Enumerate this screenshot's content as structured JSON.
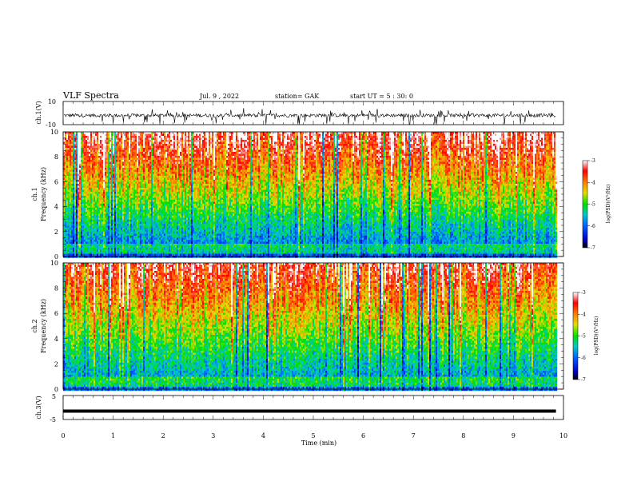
{
  "header": {
    "title": "VLF Spectra",
    "date": "Jul. 9 , 2022",
    "station": "station= GAK",
    "start": "start UT = 5 : 30: 0"
  },
  "chart_data": [
    {
      "type": "line",
      "ylabel": "ch.1(V)",
      "xlim": [
        0,
        10
      ],
      "ylim": [
        -10,
        10
      ],
      "y_tick_labels": [
        "10",
        "-10"
      ],
      "description_values": "noisy waveform mostly between -8 and 2 V, offset near -2 V"
    },
    {
      "type": "heatmap",
      "ylabel_line1": "ch.1",
      "ylabel_line2": "Frequency (kHz)",
      "xlim": [
        0,
        9.85
      ],
      "ylim": [
        0,
        10
      ],
      "y_tick_labels": [
        "0",
        "2",
        "4",
        "6",
        "8",
        "10"
      ],
      "colorbar": {
        "label": "log(PSD)(V²/Hz)",
        "range": [
          -7,
          -3
        ],
        "tick_labels": [
          "-3",
          "-4",
          "-5",
          "-6",
          "-7"
        ]
      }
    },
    {
      "type": "heatmap",
      "ylabel_line1": "ch.2",
      "ylabel_line2": "Frequency (kHz)",
      "xlim": [
        0,
        9.85
      ],
      "ylim": [
        0,
        10
      ],
      "y_tick_labels": [
        "0",
        "2",
        "4",
        "6",
        "8",
        "10"
      ],
      "colorbar": {
        "label": "log(PSD)(V²/Hz)",
        "range": [
          -7,
          -3
        ],
        "tick_labels": [
          "-3",
          "-4",
          "-5",
          "-6",
          "-7"
        ]
      }
    },
    {
      "type": "line",
      "ylabel": "ch.3(V)",
      "xlim": [
        0,
        10
      ],
      "ylim": [
        -5,
        5
      ],
      "y_tick_labels": [
        "5",
        "-5"
      ],
      "x": [
        0,
        9.85
      ],
      "y": [
        -1.5,
        -1.5
      ]
    }
  ],
  "xaxis": {
    "label": "Time (min)",
    "tick_labels": [
      "0",
      "1",
      "2",
      "3",
      "4",
      "5",
      "6",
      "7",
      "8",
      "9",
      "10"
    ]
  }
}
